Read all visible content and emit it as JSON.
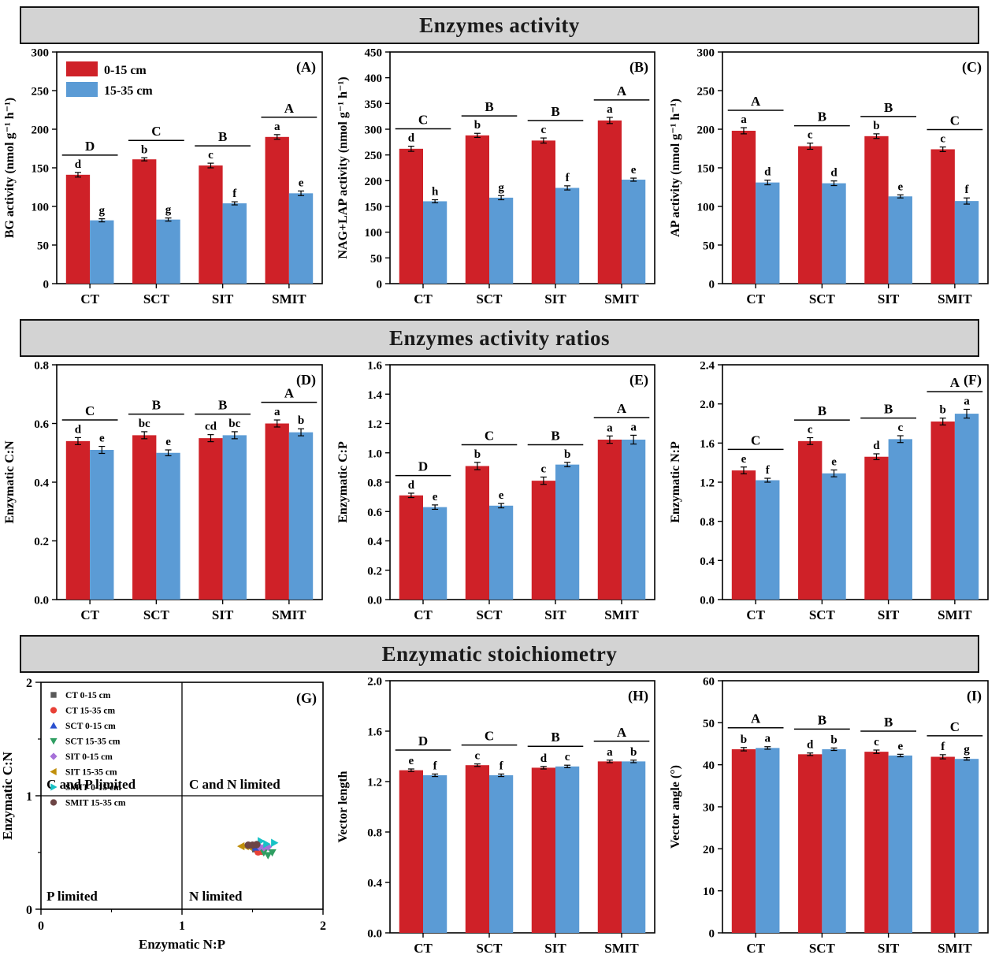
{
  "banners": {
    "row1": "Enzymes activity",
    "row2": "Enzymes activity ratios",
    "row3": "Enzymatic stoichiometry"
  },
  "legend": {
    "series1": "0-15 cm",
    "series2": "15-35 cm"
  },
  "colors": {
    "series1": "#cf2128",
    "series2": "#5b9bd5",
    "banner_bg": "#d3d3d3",
    "axis": "#000000"
  },
  "chart_data": [
    {
      "type": "bar",
      "panel": "(A)",
      "section": "Enzymes activity",
      "ylabel": "BG activity (nmol g⁻¹ h⁻¹)",
      "ylim": [
        0,
        300
      ],
      "ytick_step": 50,
      "decimals": 0,
      "categories": [
        "CT",
        "SCT",
        "SIT",
        "SMIT"
      ],
      "series": [
        {
          "name": "0-15 cm",
          "color_key": "series1",
          "values": [
            141,
            161,
            153,
            190
          ],
          "errors": [
            3,
            2,
            3,
            3
          ],
          "letters": [
            "d",
            "b",
            "c",
            "a"
          ]
        },
        {
          "name": "15-35 cm",
          "color_key": "series2",
          "values": [
            82,
            83,
            104,
            117
          ],
          "errors": [
            2,
            2,
            2,
            3
          ],
          "letters": [
            "g",
            "g",
            "f",
            "e"
          ]
        }
      ],
      "group_letters": [
        "D",
        "C",
        "B",
        "A"
      ],
      "show_legend": true
    },
    {
      "type": "bar",
      "panel": "(B)",
      "section": "Enzymes activity",
      "ylabel": "NAG+LAP activity (nmol g⁻¹ h⁻¹)",
      "ylim": [
        0,
        450
      ],
      "ytick_step": 50,
      "decimals": 0,
      "categories": [
        "CT",
        "SCT",
        "SIT",
        "SMIT"
      ],
      "series": [
        {
          "name": "0-15 cm",
          "color_key": "series1",
          "values": [
            262,
            288,
            278,
            317
          ],
          "errors": [
            5,
            4,
            5,
            6
          ],
          "letters": [
            "d",
            "b",
            "c",
            "a"
          ]
        },
        {
          "name": "15-35 cm",
          "color_key": "series2",
          "values": [
            160,
            167,
            186,
            202
          ],
          "errors": [
            3,
            4,
            4,
            3
          ],
          "letters": [
            "h",
            "g",
            "f",
            "e"
          ]
        }
      ],
      "group_letters": [
        "C",
        "B",
        "B",
        "A"
      ],
      "show_legend": false
    },
    {
      "type": "bar",
      "panel": "(C)",
      "section": "Enzymes activity",
      "ylabel": "AP activity (nmol g⁻¹ h⁻¹)",
      "ylim": [
        0,
        300
      ],
      "ytick_step": 50,
      "decimals": 0,
      "categories": [
        "CT",
        "SCT",
        "SIT",
        "SMIT"
      ],
      "series": [
        {
          "name": "0-15 cm",
          "color_key": "series1",
          "values": [
            198,
            178,
            191,
            174
          ],
          "errors": [
            4,
            4,
            3,
            3
          ],
          "letters": [
            "a",
            "c",
            "b",
            "c"
          ]
        },
        {
          "name": "15-35 cm",
          "color_key": "series2",
          "values": [
            131,
            130,
            113,
            107
          ],
          "errors": [
            3,
            3,
            2,
            4
          ],
          "letters": [
            "d",
            "d",
            "e",
            "f"
          ]
        }
      ],
      "group_letters": [
        "A",
        "B",
        "B",
        "C"
      ],
      "show_legend": false
    },
    {
      "type": "bar",
      "panel": "(D)",
      "section": "Enzymes activity ratios",
      "ylabel": "Enzymatic C:N",
      "ylim": [
        0,
        0.8
      ],
      "ytick_step": 0.2,
      "decimals": 1,
      "categories": [
        "CT",
        "SCT",
        "SIT",
        "SMIT"
      ],
      "series": [
        {
          "name": "0-15 cm",
          "color_key": "series1",
          "values": [
            0.54,
            0.56,
            0.55,
            0.6
          ],
          "errors": [
            0.012,
            0.012,
            0.012,
            0.012
          ],
          "letters": [
            "d",
            "bc",
            "cd",
            "a"
          ]
        },
        {
          "name": "15-35 cm",
          "color_key": "series2",
          "values": [
            0.51,
            0.5,
            0.56,
            0.57
          ],
          "errors": [
            0.012,
            0.01,
            0.012,
            0.012
          ],
          "letters": [
            "e",
            "e",
            "bc",
            "b"
          ]
        }
      ],
      "group_letters": [
        "C",
        "B",
        "B",
        "A"
      ],
      "show_legend": false
    },
    {
      "type": "bar",
      "panel": "(E)",
      "section": "Enzymes activity ratios",
      "ylabel": "Enzymatic C:P",
      "ylim": [
        0,
        1.6
      ],
      "ytick_step": 0.2,
      "decimals": 1,
      "categories": [
        "CT",
        "SCT",
        "SIT",
        "SMIT"
      ],
      "series": [
        {
          "name": "0-15 cm",
          "color_key": "series1",
          "values": [
            0.71,
            0.91,
            0.81,
            1.09
          ],
          "errors": [
            0.015,
            0.025,
            0.025,
            0.025
          ],
          "letters": [
            "d",
            "b",
            "c",
            "a"
          ]
        },
        {
          "name": "15-35 cm",
          "color_key": "series2",
          "values": [
            0.63,
            0.64,
            0.92,
            1.09
          ],
          "errors": [
            0.015,
            0.015,
            0.015,
            0.03
          ],
          "letters": [
            "e",
            "e",
            "b",
            "a"
          ]
        }
      ],
      "group_letters": [
        "D",
        "C",
        "B",
        "A"
      ],
      "show_legend": false
    },
    {
      "type": "bar",
      "panel": "(F)",
      "section": "Enzymes activity ratios",
      "ylabel": "Enzymatic N:P",
      "ylim": [
        0,
        2.4
      ],
      "ytick_step": 0.4,
      "decimals": 1,
      "categories": [
        "CT",
        "SCT",
        "SIT",
        "SMIT"
      ],
      "series": [
        {
          "name": "0-15 cm",
          "color_key": "series1",
          "values": [
            1.32,
            1.62,
            1.46,
            1.82
          ],
          "errors": [
            0.035,
            0.035,
            0.03,
            0.035
          ],
          "letters": [
            "e",
            "c",
            "d",
            "b"
          ]
        },
        {
          "name": "15-35 cm",
          "color_key": "series2",
          "values": [
            1.22,
            1.29,
            1.64,
            1.9
          ],
          "errors": [
            0.02,
            0.035,
            0.035,
            0.045
          ],
          "letters": [
            "f",
            "e",
            "c",
            "a"
          ]
        }
      ],
      "group_letters": [
        "C",
        "B",
        "B",
        "A"
      ],
      "show_legend": false
    },
    {
      "type": "scatter",
      "panel": "(G)",
      "section": "Enzymatic stoichiometry",
      "xlabel": "Enzymatic N:P",
      "ylabel": "Enzymatic C:N",
      "xlim": [
        0,
        2
      ],
      "ylim": [
        0,
        2
      ],
      "xticks": [
        0,
        1,
        2
      ],
      "yticks": [
        0,
        1,
        2
      ],
      "minor_ticks": [
        0.5,
        1.5
      ],
      "ref_x": 1,
      "ref_y": 1,
      "quadrants": {
        "top_left": "C and P limited",
        "top_right": "C and N limited",
        "bottom_left": "P limited",
        "bottom_right": "N limited"
      },
      "series": [
        {
          "label": "CT 0-15 cm",
          "marker": "square",
          "color": "#595959",
          "points": [
            [
              1.52,
              0.53
            ],
            [
              1.56,
              0.525
            ]
          ]
        },
        {
          "label": "CT 15-35 cm",
          "marker": "circle",
          "color": "#e84036",
          "points": [
            [
              1.54,
              0.505
            ],
            [
              1.57,
              0.51
            ]
          ]
        },
        {
          "label": "SCT 0-15 cm",
          "marker": "triangle-up",
          "color": "#2b50cf",
          "points": [
            [
              1.52,
              0.545
            ],
            [
              1.545,
              0.55
            ]
          ]
        },
        {
          "label": "SCT 15-35 cm",
          "marker": "triangle-down",
          "color": "#2f9e62",
          "points": [
            [
              1.58,
              0.5
            ],
            [
              1.61,
              0.475
            ],
            [
              1.64,
              0.5
            ]
          ]
        },
        {
          "label": "SIT 0-15 cm",
          "marker": "diamond",
          "color": "#a671d8",
          "points": [
            [
              1.55,
              0.55
            ],
            [
              1.58,
              0.545
            ],
            [
              1.61,
              0.55
            ]
          ]
        },
        {
          "label": "SIT 15-35 cm",
          "marker": "triangle-left",
          "color": "#c08f0b",
          "points": [
            [
              1.42,
              0.555
            ],
            [
              1.45,
              0.555
            ],
            [
              1.475,
              0.55
            ]
          ]
        },
        {
          "label": "SMIT 0-15 cm",
          "marker": "triangle-right",
          "color": "#17c2c6",
          "points": [
            [
              1.56,
              0.6
            ],
            [
              1.6,
              0.575
            ],
            [
              1.655,
              0.585
            ]
          ]
        },
        {
          "label": "SMIT 15-35 cm",
          "marker": "circle",
          "color": "#6d4545",
          "points": [
            [
              1.47,
              0.565
            ],
            [
              1.5,
              0.565
            ],
            [
              1.53,
              0.57
            ]
          ]
        }
      ]
    },
    {
      "type": "bar",
      "panel": "(H)",
      "section": "Enzymatic stoichiometry",
      "ylabel": "Vector length",
      "ylim": [
        0,
        2.0
      ],
      "ytick_step": 0.4,
      "decimals": 1,
      "categories": [
        "CT",
        "SCT",
        "SIT",
        "SMIT"
      ],
      "series": [
        {
          "name": "0-15 cm",
          "color_key": "series1",
          "values": [
            1.29,
            1.33,
            1.31,
            1.36
          ],
          "errors": [
            0.01,
            0.01,
            0.01,
            0.01
          ],
          "letters": [
            "e",
            "c",
            "d",
            "a"
          ]
        },
        {
          "name": "15-35 cm",
          "color_key": "series2",
          "values": [
            1.25,
            1.25,
            1.32,
            1.36
          ],
          "errors": [
            0.01,
            0.01,
            0.01,
            0.01
          ],
          "letters": [
            "f",
            "f",
            "c",
            "b"
          ]
        }
      ],
      "group_letters": [
        "D",
        "C",
        "B",
        "A"
      ],
      "show_legend": false
    },
    {
      "type": "bar",
      "panel": "(I)",
      "section": "Enzymatic stoichiometry",
      "ylabel": "Vector angle (°)",
      "ylim": [
        0,
        60
      ],
      "ytick_step": 10,
      "decimals": 0,
      "categories": [
        "CT",
        "SCT",
        "SIT",
        "SMIT"
      ],
      "series": [
        {
          "name": "0-15 cm",
          "color_key": "series1",
          "values": [
            43.7,
            42.5,
            43.1,
            41.9
          ],
          "errors": [
            0.4,
            0.3,
            0.4,
            0.5
          ],
          "letters": [
            "b",
            "d",
            "c",
            "f"
          ]
        },
        {
          "name": "15-35 cm",
          "color_key": "series2",
          "values": [
            44.0,
            43.7,
            42.2,
            41.4
          ],
          "errors": [
            0.3,
            0.3,
            0.3,
            0.3
          ],
          "letters": [
            "a",
            "b",
            "e",
            "g"
          ]
        }
      ],
      "group_letters": [
        "A",
        "B",
        "B",
        "C"
      ],
      "show_legend": false
    }
  ]
}
